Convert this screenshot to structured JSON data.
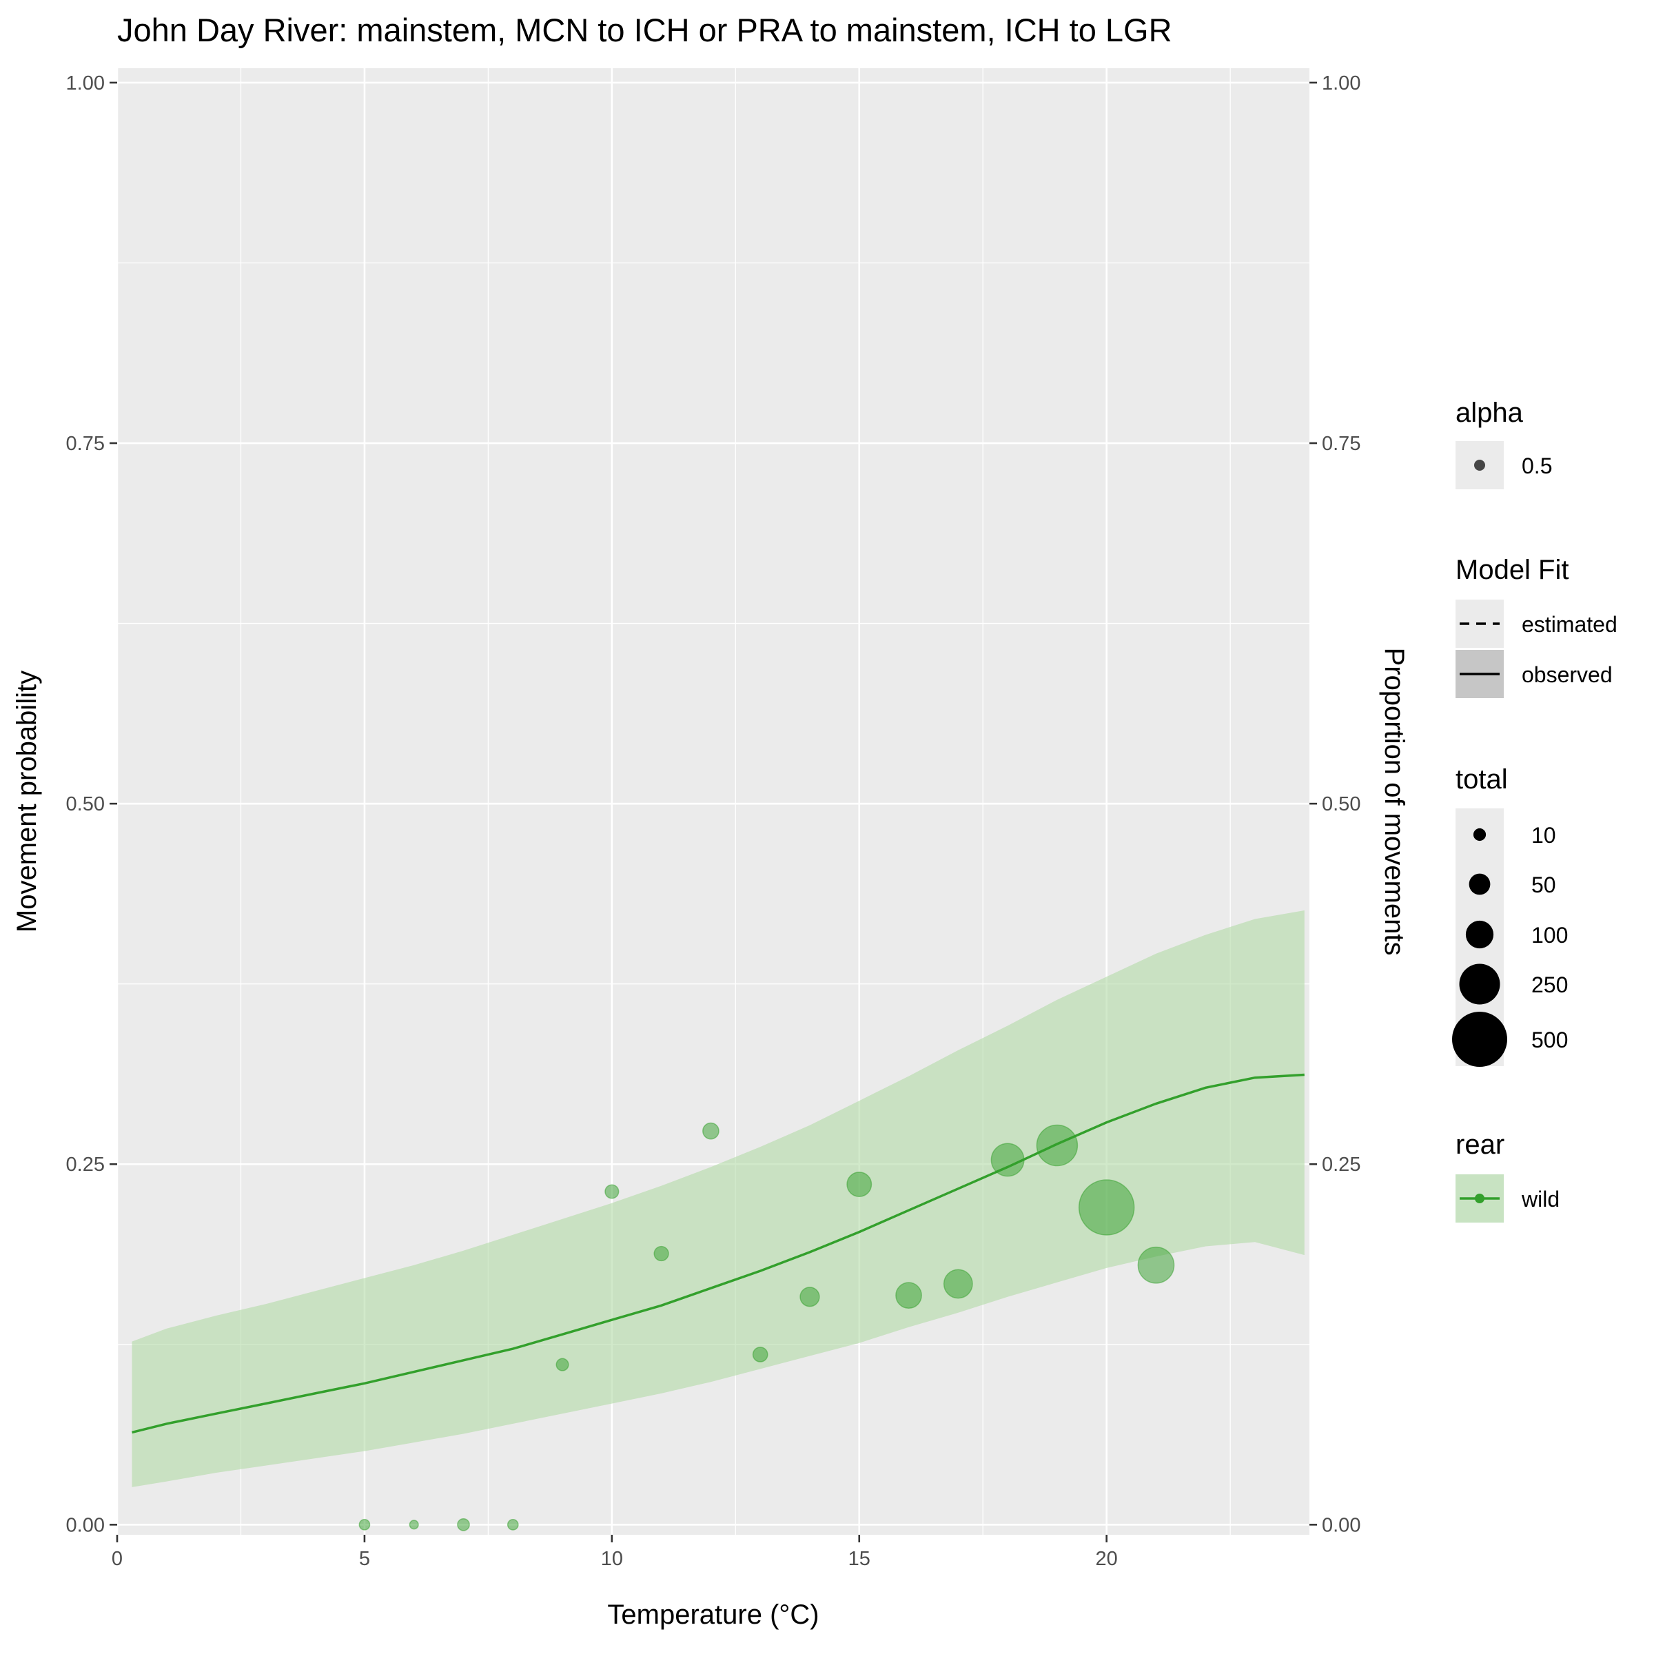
{
  "chart_data": {
    "type": "scatter",
    "title": "John Day River: mainstem, MCN to ICH or PRA to mainstem, ICH to LGR",
    "xlabel": "Temperature (°C)",
    "ylabel": "Movement probability",
    "ylabel_secondary": "Proportion of movements",
    "xlim": [
      0,
      24.1
    ],
    "ylim": [
      -0.007,
      1.01
    ],
    "xticks": [
      0,
      5,
      10,
      15,
      20
    ],
    "xtick_labels": [
      "0",
      "5",
      "10",
      "15",
      "20"
    ],
    "yticks": [
      0,
      0.25,
      0.5,
      0.75,
      1
    ],
    "ytick_labels": [
      "0.00",
      "0.25",
      "0.50",
      "0.75",
      "1.00"
    ],
    "grid": true,
    "legend_position": "right",
    "colors": {
      "series": "#33a02c",
      "ribbon": "#b2dba6",
      "panel": "#ebebeb",
      "grid": "#ffffff",
      "tick": "#4d4d4d",
      "legend_key": "#ebebeb",
      "legend_key_fill": "#c6c6c6"
    },
    "points": [
      {
        "x": 5,
        "y": 0.0,
        "total": 5
      },
      {
        "x": 6,
        "y": 0.0,
        "total": 2
      },
      {
        "x": 7,
        "y": 0.0,
        "total": 8
      },
      {
        "x": 8,
        "y": 0.0,
        "total": 5
      },
      {
        "x": 9,
        "y": 0.111,
        "total": 9
      },
      {
        "x": 10,
        "y": 0.231,
        "total": 13
      },
      {
        "x": 11,
        "y": 0.188,
        "total": 16
      },
      {
        "x": 12,
        "y": 0.273,
        "total": 22
      },
      {
        "x": 13,
        "y": 0.118,
        "total": 17
      },
      {
        "x": 14,
        "y": 0.158,
        "total": 38
      },
      {
        "x": 15,
        "y": 0.236,
        "total": 72
      },
      {
        "x": 16,
        "y": 0.159,
        "total": 82
      },
      {
        "x": 17,
        "y": 0.167,
        "total": 108
      },
      {
        "x": 18,
        "y": 0.253,
        "total": 150
      },
      {
        "x": 19,
        "y": 0.263,
        "total": 250
      },
      {
        "x": 20,
        "y": 0.22,
        "total": 500
      },
      {
        "x": 21,
        "y": 0.18,
        "total": 189
      }
    ],
    "model_fit": {
      "x": [
        0.3,
        1,
        2,
        3,
        4,
        5,
        6,
        7,
        8,
        9,
        10,
        11,
        12,
        13,
        14,
        15,
        16,
        17,
        18,
        19,
        20,
        21,
        22,
        23,
        24
      ],
      "y": [
        0.064,
        0.07,
        0.077,
        0.084,
        0.091,
        0.098,
        0.106,
        0.114,
        0.122,
        0.132,
        0.142,
        0.152,
        0.164,
        0.176,
        0.189,
        0.203,
        0.218,
        0.233,
        0.248,
        0.264,
        0.279,
        0.292,
        0.303,
        0.31,
        0.312
      ],
      "lower": [
        0.026,
        0.03,
        0.036,
        0.041,
        0.046,
        0.051,
        0.057,
        0.063,
        0.07,
        0.077,
        0.084,
        0.091,
        0.099,
        0.108,
        0.117,
        0.126,
        0.137,
        0.147,
        0.158,
        0.168,
        0.178,
        0.186,
        0.193,
        0.196,
        0.187
      ],
      "upper": [
        0.127,
        0.136,
        0.145,
        0.153,
        0.162,
        0.171,
        0.18,
        0.19,
        0.201,
        0.212,
        0.223,
        0.235,
        0.248,
        0.262,
        0.277,
        0.294,
        0.311,
        0.329,
        0.346,
        0.364,
        0.38,
        0.396,
        0.409,
        0.42,
        0.426
      ]
    },
    "secondary_axis": {
      "yticks": [
        0,
        0.25,
        0.5,
        0.75,
        1
      ],
      "ytick_labels": [
        "0.00",
        "0.25",
        "0.50",
        "0.75",
        "1.00"
      ]
    },
    "legends": {
      "alpha": {
        "title": "alpha",
        "items": [
          "0.5"
        ]
      },
      "model_fit": {
        "title": "Model Fit",
        "items": [
          "estimated",
          "observed"
        ]
      },
      "total": {
        "title": "total",
        "items": [
          "10",
          "50",
          "100",
          "250",
          "500"
        ],
        "values": [
          10,
          50,
          100,
          250,
          500
        ]
      },
      "rear": {
        "title": "rear",
        "items": [
          "wild"
        ]
      }
    }
  }
}
